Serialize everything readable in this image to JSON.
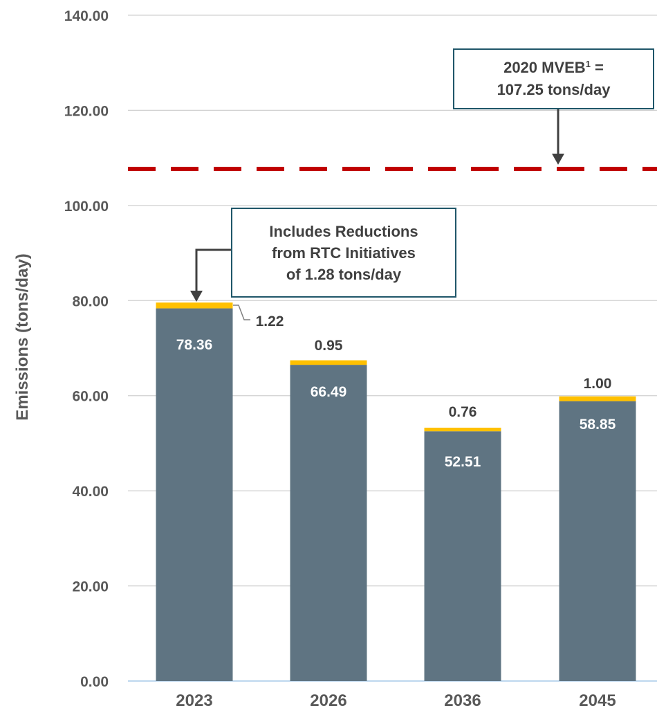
{
  "chart_data": {
    "type": "bar",
    "stacked": true,
    "categories": [
      "2023",
      "2026",
      "2036",
      "2045"
    ],
    "series": [
      {
        "values": [
          78.36,
          66.49,
          52.51,
          58.85
        ],
        "color": "#5f7482"
      },
      {
        "values": [
          1.22,
          0.95,
          0.76,
          1.0
        ],
        "color": "#ffc000"
      }
    ],
    "base_labels": [
      "78.36",
      "66.49",
      "52.51",
      "58.85"
    ],
    "top_labels": [
      "1.22",
      "0.95",
      "0.76",
      "1.00"
    ],
    "ylabel": "Emissions (tons/day)",
    "ylim": [
      0,
      140
    ],
    "y_ticks": [
      "0.00",
      "20.00",
      "40.00",
      "60.00",
      "80.00",
      "100.00",
      "120.00",
      "140.00"
    ],
    "grid": true,
    "reference_line": {
      "value": 107.25,
      "color": "#c00000",
      "style": "dashed"
    },
    "annotations": {
      "rtc_line1": "Includes Reductions",
      "rtc_line2": "from RTC Initiatives",
      "rtc_line3": "of 1.28 tons/day",
      "mveb_prefix": "2020 MVEB",
      "mveb_sup": "1",
      "mveb_suffix": " =",
      "mveb_line2": "107.25 tons/day"
    }
  }
}
